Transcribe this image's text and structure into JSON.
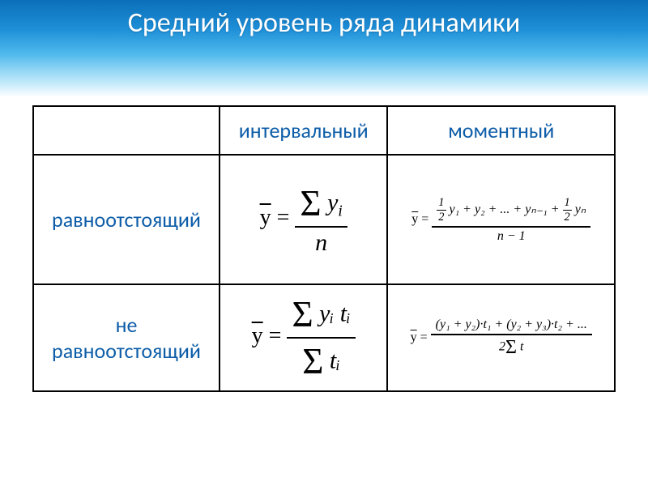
{
  "header": {
    "title": "Средний уровень ряда динамики"
  },
  "table": {
    "col1": "интервальный",
    "col2": "моментный",
    "row1": "равноотстоящий",
    "row2_a": "не",
    "row2_b": "равноотстоящий"
  },
  "formulas": {
    "f11_lhs": "ȳ =",
    "f11_num_sigma": "Σ",
    "f11_num_y": "y",
    "f11_num_sub": "i",
    "f11_den": "n",
    "f12_lhs": "ȳ =",
    "f12_half_n": "1",
    "f12_half_d": "2",
    "f12_num_mid": " y₁ + y₂ + ... + yₙ₋₁ + ",
    "f12_num_end": " yₙ",
    "f12_den": "n − 1",
    "f21_lhs": "ȳ =",
    "f21_num_sigma": "Σ",
    "f21_num": " yᵢ tᵢ",
    "f21_den_sigma": "Σ",
    "f21_den": " tᵢ",
    "f22_lhs": "ȳ =",
    "f22_num": "(y₁ + y₂)·t₁ + (y₂ + y₃)·t₂ + ...",
    "f22_den_pre": "2",
    "f22_den_sigma": "Σ",
    "f22_den_post": " t"
  },
  "style": {
    "text_color": "#0d5da8",
    "title_color": "#ffffff",
    "border_color": "#000000"
  }
}
